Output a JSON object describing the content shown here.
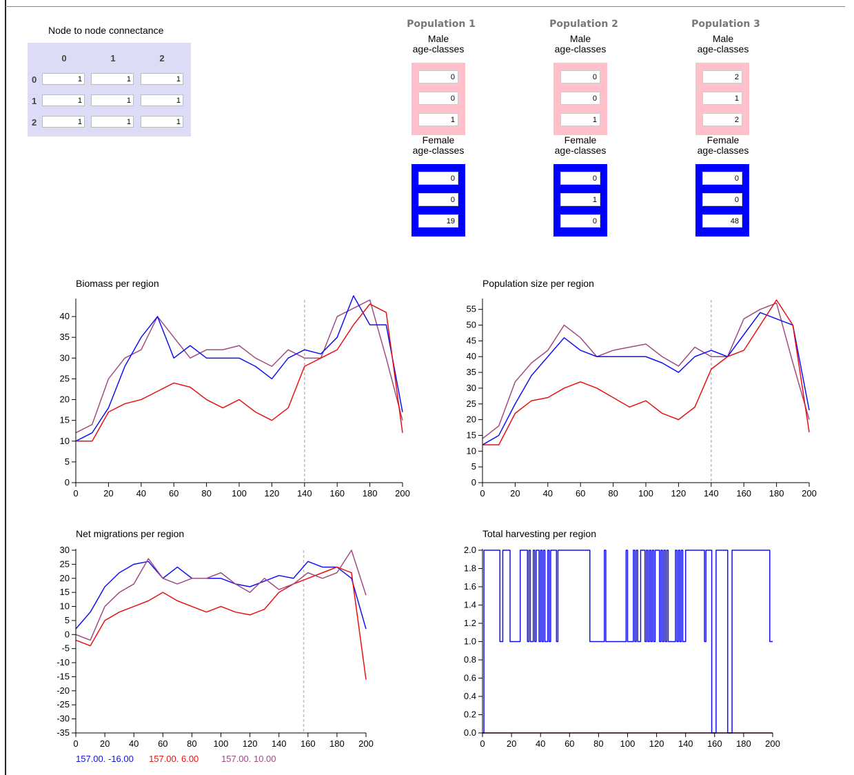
{
  "connectance": {
    "title": "Node to node connectance",
    "col_headers": [
      "0",
      "1",
      "2"
    ],
    "row_headers": [
      "0",
      "1",
      "2"
    ],
    "values": [
      [
        "1",
        "1",
        "1"
      ],
      [
        "1",
        "1",
        "1"
      ],
      [
        "1",
        "1",
        "1"
      ]
    ]
  },
  "populations": [
    {
      "title": "Population 1",
      "male_label_1": "Male",
      "male_label_2": "age-classes",
      "male": [
        "0",
        "0",
        "1"
      ],
      "female_label_1": "Female",
      "female_label_2": "age-classes",
      "female": [
        "0",
        "0",
        "19"
      ]
    },
    {
      "title": "Population 2",
      "male_label_1": "Male",
      "male_label_2": "age-classes",
      "male": [
        "0",
        "0",
        "1"
      ],
      "female_label_1": "Female",
      "female_label_2": "age-classes",
      "female": [
        "0",
        "1",
        "0"
      ]
    },
    {
      "title": "Population 3",
      "male_label_1": "Male",
      "male_label_2": "age-classes",
      "male": [
        "2",
        "1",
        "2"
      ],
      "female_label_1": "Female",
      "female_label_2": "age-classes",
      "female": [
        "0",
        "0",
        "48"
      ]
    }
  ],
  "colors": {
    "series1": "#1010f0",
    "series2": "#e81010",
    "series3": "#a04a80",
    "marker": "#bbbbbb",
    "male_box": "#ffc0cb",
    "female_box": "#0000ff"
  },
  "legend": [
    "157.00. -16.00",
    "157.00. 6.00",
    "157.00. 10.00"
  ],
  "chart_data": [
    {
      "type": "line",
      "title": "Biomass per region",
      "xlim": [
        0,
        200
      ],
      "ylim": [
        0,
        44
      ],
      "xticks": [
        0,
        20,
        40,
        60,
        80,
        100,
        120,
        140,
        160,
        180,
        200
      ],
      "yticks": [
        0,
        5,
        10,
        15,
        20,
        25,
        30,
        35,
        40
      ],
      "marker_x": 140,
      "series": [
        {
          "x": [
            0,
            10,
            20,
            30,
            40,
            50,
            60,
            70,
            80,
            90,
            100,
            110,
            120,
            130,
            140,
            150,
            160,
            170,
            180,
            190,
            200
          ],
          "values": [
            10,
            12,
            18,
            28,
            35,
            40,
            30,
            33,
            30,
            30,
            30,
            28,
            25,
            30,
            32,
            31,
            35,
            45,
            38,
            38,
            17
          ]
        },
        {
          "x": [
            0,
            10,
            20,
            30,
            40,
            50,
            60,
            70,
            80,
            90,
            100,
            110,
            120,
            130,
            140,
            150,
            160,
            170,
            180,
            190,
            200
          ],
          "values": [
            10,
            10,
            17,
            19,
            20,
            22,
            24,
            23,
            20,
            18,
            20,
            17,
            15,
            18,
            28,
            30,
            32,
            38,
            43,
            41,
            12
          ]
        },
        {
          "x": [
            0,
            10,
            20,
            30,
            40,
            50,
            60,
            70,
            80,
            90,
            100,
            110,
            120,
            130,
            140,
            150,
            160,
            170,
            180,
            190,
            200
          ],
          "values": [
            12,
            14,
            25,
            30,
            32,
            40,
            35,
            30,
            32,
            32,
            33,
            30,
            28,
            32,
            30,
            30,
            40,
            42,
            44,
            30,
            15
          ]
        }
      ]
    },
    {
      "type": "line",
      "title": "Population size per region",
      "xlim": [
        0,
        200
      ],
      "ylim": [
        0,
        58
      ],
      "xticks": [
        0,
        20,
        40,
        60,
        80,
        100,
        120,
        140,
        160,
        180,
        200
      ],
      "yticks": [
        0,
        5,
        10,
        15,
        20,
        25,
        30,
        35,
        40,
        45,
        50,
        55
      ],
      "marker_x": 140,
      "series": [
        {
          "x": [
            0,
            10,
            20,
            30,
            40,
            50,
            60,
            70,
            80,
            90,
            100,
            110,
            120,
            130,
            140,
            150,
            160,
            170,
            180,
            190,
            200
          ],
          "values": [
            12,
            15,
            25,
            34,
            40,
            46,
            42,
            40,
            40,
            40,
            40,
            38,
            35,
            40,
            42,
            40,
            47,
            54,
            52,
            50,
            23
          ]
        },
        {
          "x": [
            0,
            10,
            20,
            30,
            40,
            50,
            60,
            70,
            80,
            90,
            100,
            110,
            120,
            130,
            140,
            150,
            160,
            170,
            180,
            190,
            200
          ],
          "values": [
            12,
            12,
            22,
            26,
            27,
            30,
            32,
            30,
            27,
            24,
            26,
            22,
            20,
            24,
            36,
            40,
            42,
            50,
            58,
            50,
            16
          ]
        },
        {
          "x": [
            0,
            10,
            20,
            30,
            40,
            50,
            60,
            70,
            80,
            90,
            100,
            110,
            120,
            130,
            140,
            150,
            160,
            170,
            180,
            190,
            200
          ],
          "values": [
            14,
            18,
            32,
            38,
            42,
            50,
            46,
            40,
            42,
            43,
            44,
            40,
            37,
            43,
            40,
            40,
            52,
            55,
            57,
            38,
            20
          ]
        }
      ]
    },
    {
      "type": "line",
      "title": "Net migrations per region",
      "xlim": [
        0,
        200
      ],
      "ylim": [
        -35,
        30
      ],
      "xticks": [
        0,
        20,
        40,
        60,
        80,
        100,
        120,
        140,
        160,
        180,
        200
      ],
      "yticks": [
        -35,
        -30,
        -25,
        -20,
        -15,
        -10,
        -5,
        0,
        5,
        10,
        15,
        20,
        25,
        30
      ],
      "marker_x": 157,
      "series": [
        {
          "x": [
            0,
            10,
            20,
            30,
            40,
            50,
            60,
            70,
            80,
            90,
            100,
            110,
            120,
            130,
            140,
            150,
            160,
            170,
            180,
            190,
            200
          ],
          "values": [
            2,
            8,
            17,
            22,
            25,
            26,
            20,
            24,
            20,
            20,
            20,
            18,
            17,
            19,
            21,
            20,
            26,
            24,
            24,
            20,
            2
          ]
        },
        {
          "x": [
            0,
            10,
            20,
            30,
            40,
            50,
            60,
            70,
            80,
            90,
            100,
            110,
            120,
            130,
            140,
            150,
            160,
            170,
            180,
            190,
            200
          ],
          "values": [
            -2,
            -4,
            5,
            8,
            10,
            12,
            15,
            12,
            10,
            8,
            10,
            8,
            7,
            9,
            15,
            18,
            20,
            22,
            24,
            22,
            -16
          ]
        },
        {
          "x": [
            0,
            10,
            20,
            30,
            40,
            50,
            60,
            70,
            80,
            90,
            100,
            110,
            120,
            130,
            140,
            150,
            160,
            170,
            180,
            190,
            200
          ],
          "values": [
            0,
            -2,
            10,
            15,
            18,
            27,
            20,
            18,
            20,
            20,
            22,
            18,
            15,
            20,
            16,
            18,
            22,
            20,
            22,
            30,
            14
          ]
        }
      ]
    },
    {
      "type": "line",
      "title": "Total harvesting per region",
      "xlim": [
        0,
        200
      ],
      "ylim": [
        0,
        2
      ],
      "xticks": [
        0,
        20,
        40,
        60,
        80,
        100,
        120,
        140,
        160,
        180,
        200
      ],
      "yticks": [
        0.0,
        0.2,
        0.4,
        0.6,
        0.8,
        1.0,
        1.2,
        1.4,
        1.6,
        1.8,
        2.0
      ],
      "marker_x": 158,
      "series": [
        {
          "x": [
            0,
            1,
            11,
            12,
            14,
            18,
            19,
            26,
            30,
            31,
            32,
            33,
            35,
            36,
            37,
            39,
            40,
            41,
            42,
            43,
            45,
            46,
            47,
            50,
            51,
            52,
            73,
            74,
            84,
            85,
            99,
            100,
            104,
            105,
            106,
            107,
            109,
            110,
            112,
            113,
            114,
            115,
            116,
            117,
            118,
            119,
            121,
            122,
            123,
            124,
            125,
            126,
            127,
            128,
            133,
            134,
            135,
            136,
            137,
            138,
            140,
            141,
            152,
            153,
            154,
            157,
            158,
            160,
            161,
            168,
            169,
            170,
            172,
            173,
            197,
            198,
            200
          ],
          "values": [
            0,
            2,
            2,
            1,
            2,
            2,
            1,
            2,
            2,
            1,
            2,
            1,
            2,
            1,
            2,
            1,
            2,
            1,
            2,
            1,
            2,
            1,
            2,
            2,
            1,
            2,
            2,
            1,
            2,
            1,
            2,
            1,
            2,
            1,
            2,
            1,
            2,
            2,
            1,
            2,
            1,
            2,
            1,
            2,
            1,
            2,
            2,
            1,
            2,
            1,
            2,
            1,
            2,
            1,
            2,
            1,
            2,
            1,
            2,
            1,
            2,
            2,
            2,
            1,
            2,
            2,
            0,
            0,
            2,
            2,
            0,
            0,
            2,
            2,
            2,
            1,
            1
          ]
        },
        {
          "x": [
            0,
            200
          ],
          "values": [
            0,
            0
          ]
        },
        {
          "x": [
            0,
            200
          ],
          "values": [
            0,
            0
          ]
        }
      ]
    }
  ]
}
